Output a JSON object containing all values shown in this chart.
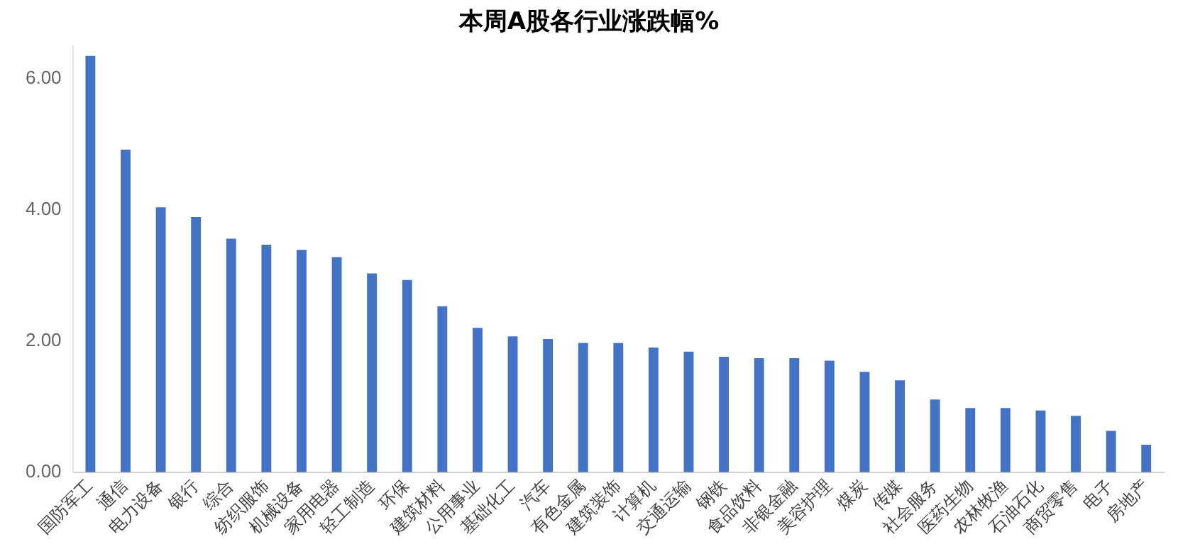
{
  "chart_data": {
    "type": "bar",
    "title": "本周A股各行业涨跌幅%",
    "categories": [
      "国防军工",
      "通信",
      "电力设备",
      "银行",
      "综合",
      "纺织服饰",
      "机械设备",
      "家用电器",
      "轻工制造",
      "环保",
      "建筑材料",
      "公用事业",
      "基础化工",
      "汽车",
      "有色金属",
      "建筑装饰",
      "计算机",
      "交通运输",
      "钢铁",
      "食品饮料",
      "非银金融",
      "美容护理",
      "煤炭",
      "传媒",
      "社会服务",
      "医药生物",
      "农林牧渔",
      "石油石化",
      "商贸零售",
      "电子",
      "房地产"
    ],
    "values": [
      6.35,
      4.92,
      4.04,
      3.89,
      3.56,
      3.47,
      3.39,
      3.28,
      3.03,
      2.93,
      2.53,
      2.2,
      2.07,
      2.03,
      1.97,
      1.97,
      1.9,
      1.84,
      1.76,
      1.74,
      1.74,
      1.7,
      1.53,
      1.4,
      1.11,
      0.98,
      0.98,
      0.94,
      0.86,
      0.63,
      0.42
    ],
    "color": "#4472c4",
    "ylim": [
      0,
      6.5
    ],
    "yticks": [
      {
        "value": 0,
        "label": "0.00"
      },
      {
        "value": 2,
        "label": "2.00"
      },
      {
        "value": 4,
        "label": "4.00"
      },
      {
        "value": 6,
        "label": "6.00"
      }
    ],
    "grid": false,
    "legend": false
  }
}
